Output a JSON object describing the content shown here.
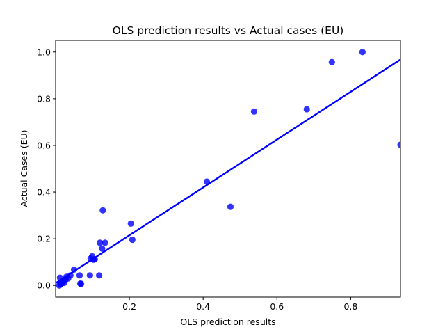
{
  "chart_data": {
    "type": "scatter",
    "title": "OLS prediction results vs Actual cases (EU)",
    "xlabel": "OLS prediction results",
    "ylabel": "Actual Cases (EU)",
    "xlim": [
      0.0,
      0.935
    ],
    "ylim": [
      -0.05,
      1.05
    ],
    "xticks": [
      0.2,
      0.4,
      0.6,
      0.8
    ],
    "xtick_labels": [
      "0.2",
      "0.4",
      "0.6",
      "0.8"
    ],
    "yticks": [
      0.0,
      0.2,
      0.4,
      0.6,
      0.8,
      1.0
    ],
    "ytick_labels": [
      "0.0",
      "0.2",
      "0.4",
      "0.6",
      "0.8",
      "1.0"
    ],
    "grid": false,
    "colors": {
      "points": "#0000ff",
      "fit_line": "#0000ff"
    },
    "points": [
      {
        "x": 0.01,
        "y": 0.0
      },
      {
        "x": 0.013,
        "y": 0.005
      },
      {
        "x": 0.016,
        "y": 0.01
      },
      {
        "x": 0.012,
        "y": 0.033
      },
      {
        "x": 0.02,
        "y": 0.018
      },
      {
        "x": 0.023,
        "y": 0.011
      },
      {
        "x": 0.027,
        "y": 0.025
      },
      {
        "x": 0.029,
        "y": 0.037
      },
      {
        "x": 0.034,
        "y": 0.03
      },
      {
        "x": 0.04,
        "y": 0.043
      },
      {
        "x": 0.05,
        "y": 0.068
      },
      {
        "x": 0.065,
        "y": 0.043
      },
      {
        "x": 0.067,
        "y": 0.008
      },
      {
        "x": 0.069,
        "y": 0.007
      },
      {
        "x": 0.093,
        "y": 0.043
      },
      {
        "x": 0.095,
        "y": 0.115
      },
      {
        "x": 0.099,
        "y": 0.125
      },
      {
        "x": 0.103,
        "y": 0.11
      },
      {
        "x": 0.106,
        "y": 0.112
      },
      {
        "x": 0.118,
        "y": 0.043
      },
      {
        "x": 0.12,
        "y": 0.183
      },
      {
        "x": 0.126,
        "y": 0.158
      },
      {
        "x": 0.128,
        "y": 0.322
      },
      {
        "x": 0.134,
        "y": 0.183
      },
      {
        "x": 0.204,
        "y": 0.265
      },
      {
        "x": 0.208,
        "y": 0.196
      },
      {
        "x": 0.41,
        "y": 0.445
      },
      {
        "x": 0.474,
        "y": 0.337
      },
      {
        "x": 0.538,
        "y": 0.745
      },
      {
        "x": 0.681,
        "y": 0.755
      },
      {
        "x": 0.749,
        "y": 0.957
      },
      {
        "x": 0.832,
        "y": 1.0
      },
      {
        "x": 0.935,
        "y": 0.603
      }
    ],
    "fit_line": {
      "x": [
        0.0,
        0.935
      ],
      "y": [
        0.01,
        0.968
      ]
    }
  }
}
